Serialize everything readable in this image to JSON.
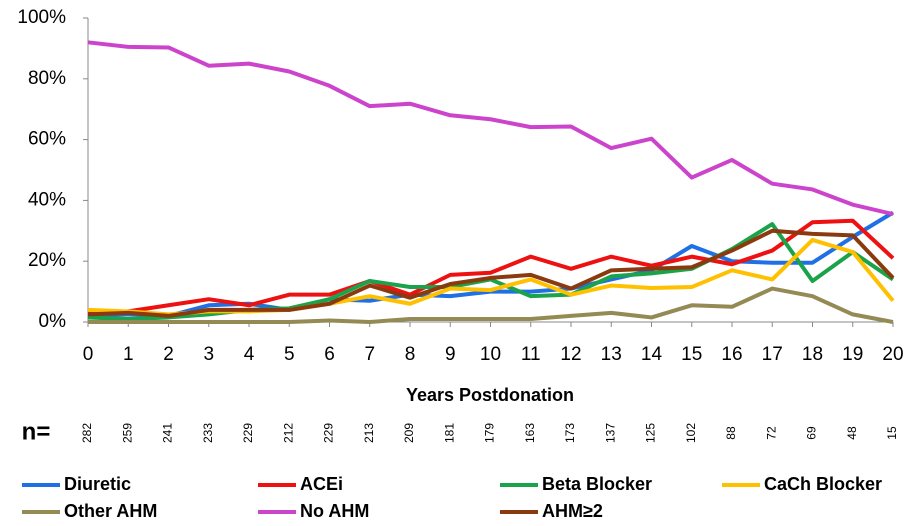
{
  "chart_data": {
    "type": "line",
    "x_label": "Years Postdonation",
    "x": [
      0,
      1,
      2,
      3,
      4,
      5,
      6,
      7,
      8,
      9,
      10,
      11,
      12,
      13,
      14,
      15,
      16,
      17,
      18,
      19,
      20
    ],
    "xlim": [
      0,
      20
    ],
    "xticks": [
      0,
      1,
      2,
      3,
      4,
      5,
      6,
      7,
      8,
      9,
      10,
      11,
      12,
      13,
      14,
      15,
      16,
      17,
      18,
      19,
      20
    ],
    "ylim": [
      0,
      100
    ],
    "yticks": [
      {
        "value": 0,
        "label": "0%"
      },
      {
        "value": 20,
        "label": "20%"
      },
      {
        "value": 40,
        "label": "40%"
      },
      {
        "value": 60,
        "label": "60%"
      },
      {
        "value": 80,
        "label": "80%"
      },
      {
        "value": 100,
        "label": "100%"
      }
    ],
    "grid": false,
    "n_label": "n=",
    "n_values": [
      282,
      259,
      241,
      233,
      229,
      212,
      229,
      213,
      209,
      181,
      179,
      163,
      173,
      137,
      125,
      102,
      88,
      72,
      69,
      48,
      15
    ],
    "series": [
      {
        "name": "Diuretic",
        "color": "#1f6fe5",
        "values": [
          2,
          2.5,
          2,
          5.5,
          6,
          4,
          7.5,
          7,
          9,
          8.5,
          10,
          10,
          11,
          14,
          17,
          25,
          20,
          19.5,
          19.5,
          28,
          36
        ]
      },
      {
        "name": "ACEi",
        "color": "#ee1111",
        "values": [
          3,
          3.5,
          5.5,
          7.5,
          5.5,
          9,
          9,
          13.5,
          9,
          15.5,
          16.2,
          21.5,
          17.5,
          21.5,
          18.5,
          21.5,
          19,
          23.5,
          32.8,
          33.3,
          21
        ]
      },
      {
        "name": "Beta Blocker",
        "color": "#1aa34a",
        "values": [
          1.5,
          1,
          1.5,
          2.5,
          4,
          4.5,
          7.5,
          13.5,
          11.5,
          11.5,
          14,
          8.5,
          9,
          15,
          16,
          17.5,
          24,
          32.2,
          13.5,
          23,
          14
        ]
      },
      {
        "name": "CaCh Blocker",
        "color": "#ffc000",
        "values": [
          4,
          3.5,
          2.5,
          3.5,
          3.5,
          4,
          6,
          8.5,
          6,
          11,
          10.5,
          14,
          9,
          12,
          11.2,
          11.5,
          17,
          14,
          27,
          23,
          7
        ]
      },
      {
        "name": "Other AHM",
        "color": "#948a54",
        "values": [
          0,
          0,
          0,
          0,
          0,
          0,
          0.5,
          0,
          1,
          1,
          1,
          1,
          2,
          3,
          1.5,
          5.5,
          5,
          11,
          8.5,
          2.5,
          0
        ]
      },
      {
        "name": "No AHM",
        "color": "#cc44cc",
        "values": [
          92,
          90.5,
          90.3,
          84.3,
          85,
          82.4,
          77.7,
          71,
          71.8,
          68,
          66.7,
          64.1,
          64.3,
          57.2,
          60.3,
          47.5,
          53.3,
          45.5,
          43.6,
          38.6,
          35.5
        ]
      },
      {
        "name": "AHM≥2",
        "color": "#8b3a0f",
        "values": [
          2.5,
          3,
          2,
          4,
          4,
          4,
          6,
          12,
          8,
          12.5,
          14.5,
          15.5,
          11,
          17,
          17.5,
          18,
          23.5,
          30,
          29,
          28.5,
          14.5
        ]
      }
    ]
  }
}
